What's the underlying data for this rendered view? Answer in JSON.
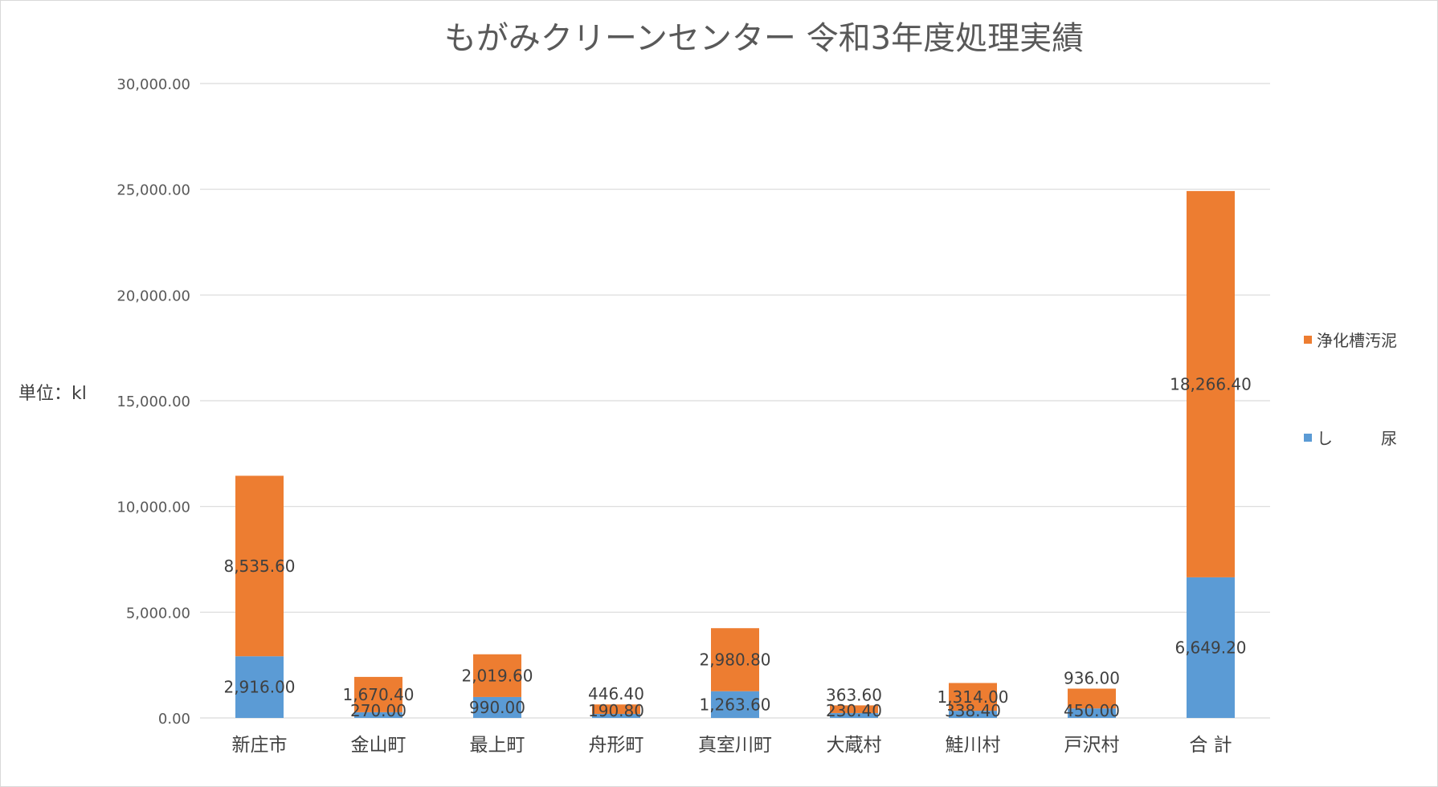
{
  "chart_data": {
    "type": "bar",
    "stacked": true,
    "title": "もがみクリーンセンター 令和3年度処理実績",
    "ylabel": "単位：kl",
    "xlabel": "",
    "ylim": [
      0,
      30000
    ],
    "yticks": [
      0,
      5000,
      10000,
      15000,
      20000,
      25000,
      30000
    ],
    "ytick_labels": [
      "0.00",
      "5,000.00",
      "10,000.00",
      "15,000.00",
      "20,000.00",
      "25,000.00",
      "30,000.00"
    ],
    "grid": true,
    "legend_position": "right",
    "categories": [
      "新庄市",
      "金山町",
      "最上町",
      "舟形町",
      "真室川町",
      "大蔵村",
      "鮭川村",
      "戸沢村",
      "合 計"
    ],
    "series": [
      {
        "name": "し　　尿",
        "color": "#5b9bd5",
        "values": [
          2916.0,
          270.0,
          990.0,
          190.8,
          1263.6,
          230.4,
          338.4,
          450.0,
          6649.2
        ],
        "labels": [
          "2,916.00",
          "270.00",
          "990.00",
          "190.80",
          "1,263.60",
          "230.40",
          "338.40",
          "450.00",
          "6,649.20"
        ]
      },
      {
        "name": "浄化槽汚泥",
        "color": "#ed7d31",
        "values": [
          8535.6,
          1670.4,
          2019.6,
          446.4,
          2980.8,
          363.6,
          1314.0,
          936.0,
          18266.4
        ],
        "labels": [
          "8,535.60",
          "1,670.40",
          "2,019.60",
          "446.40",
          "2,980.80",
          "363.60",
          "1,314.00",
          "936.00",
          "18,266.40"
        ]
      }
    ],
    "legend_order": [
      1,
      0
    ]
  }
}
